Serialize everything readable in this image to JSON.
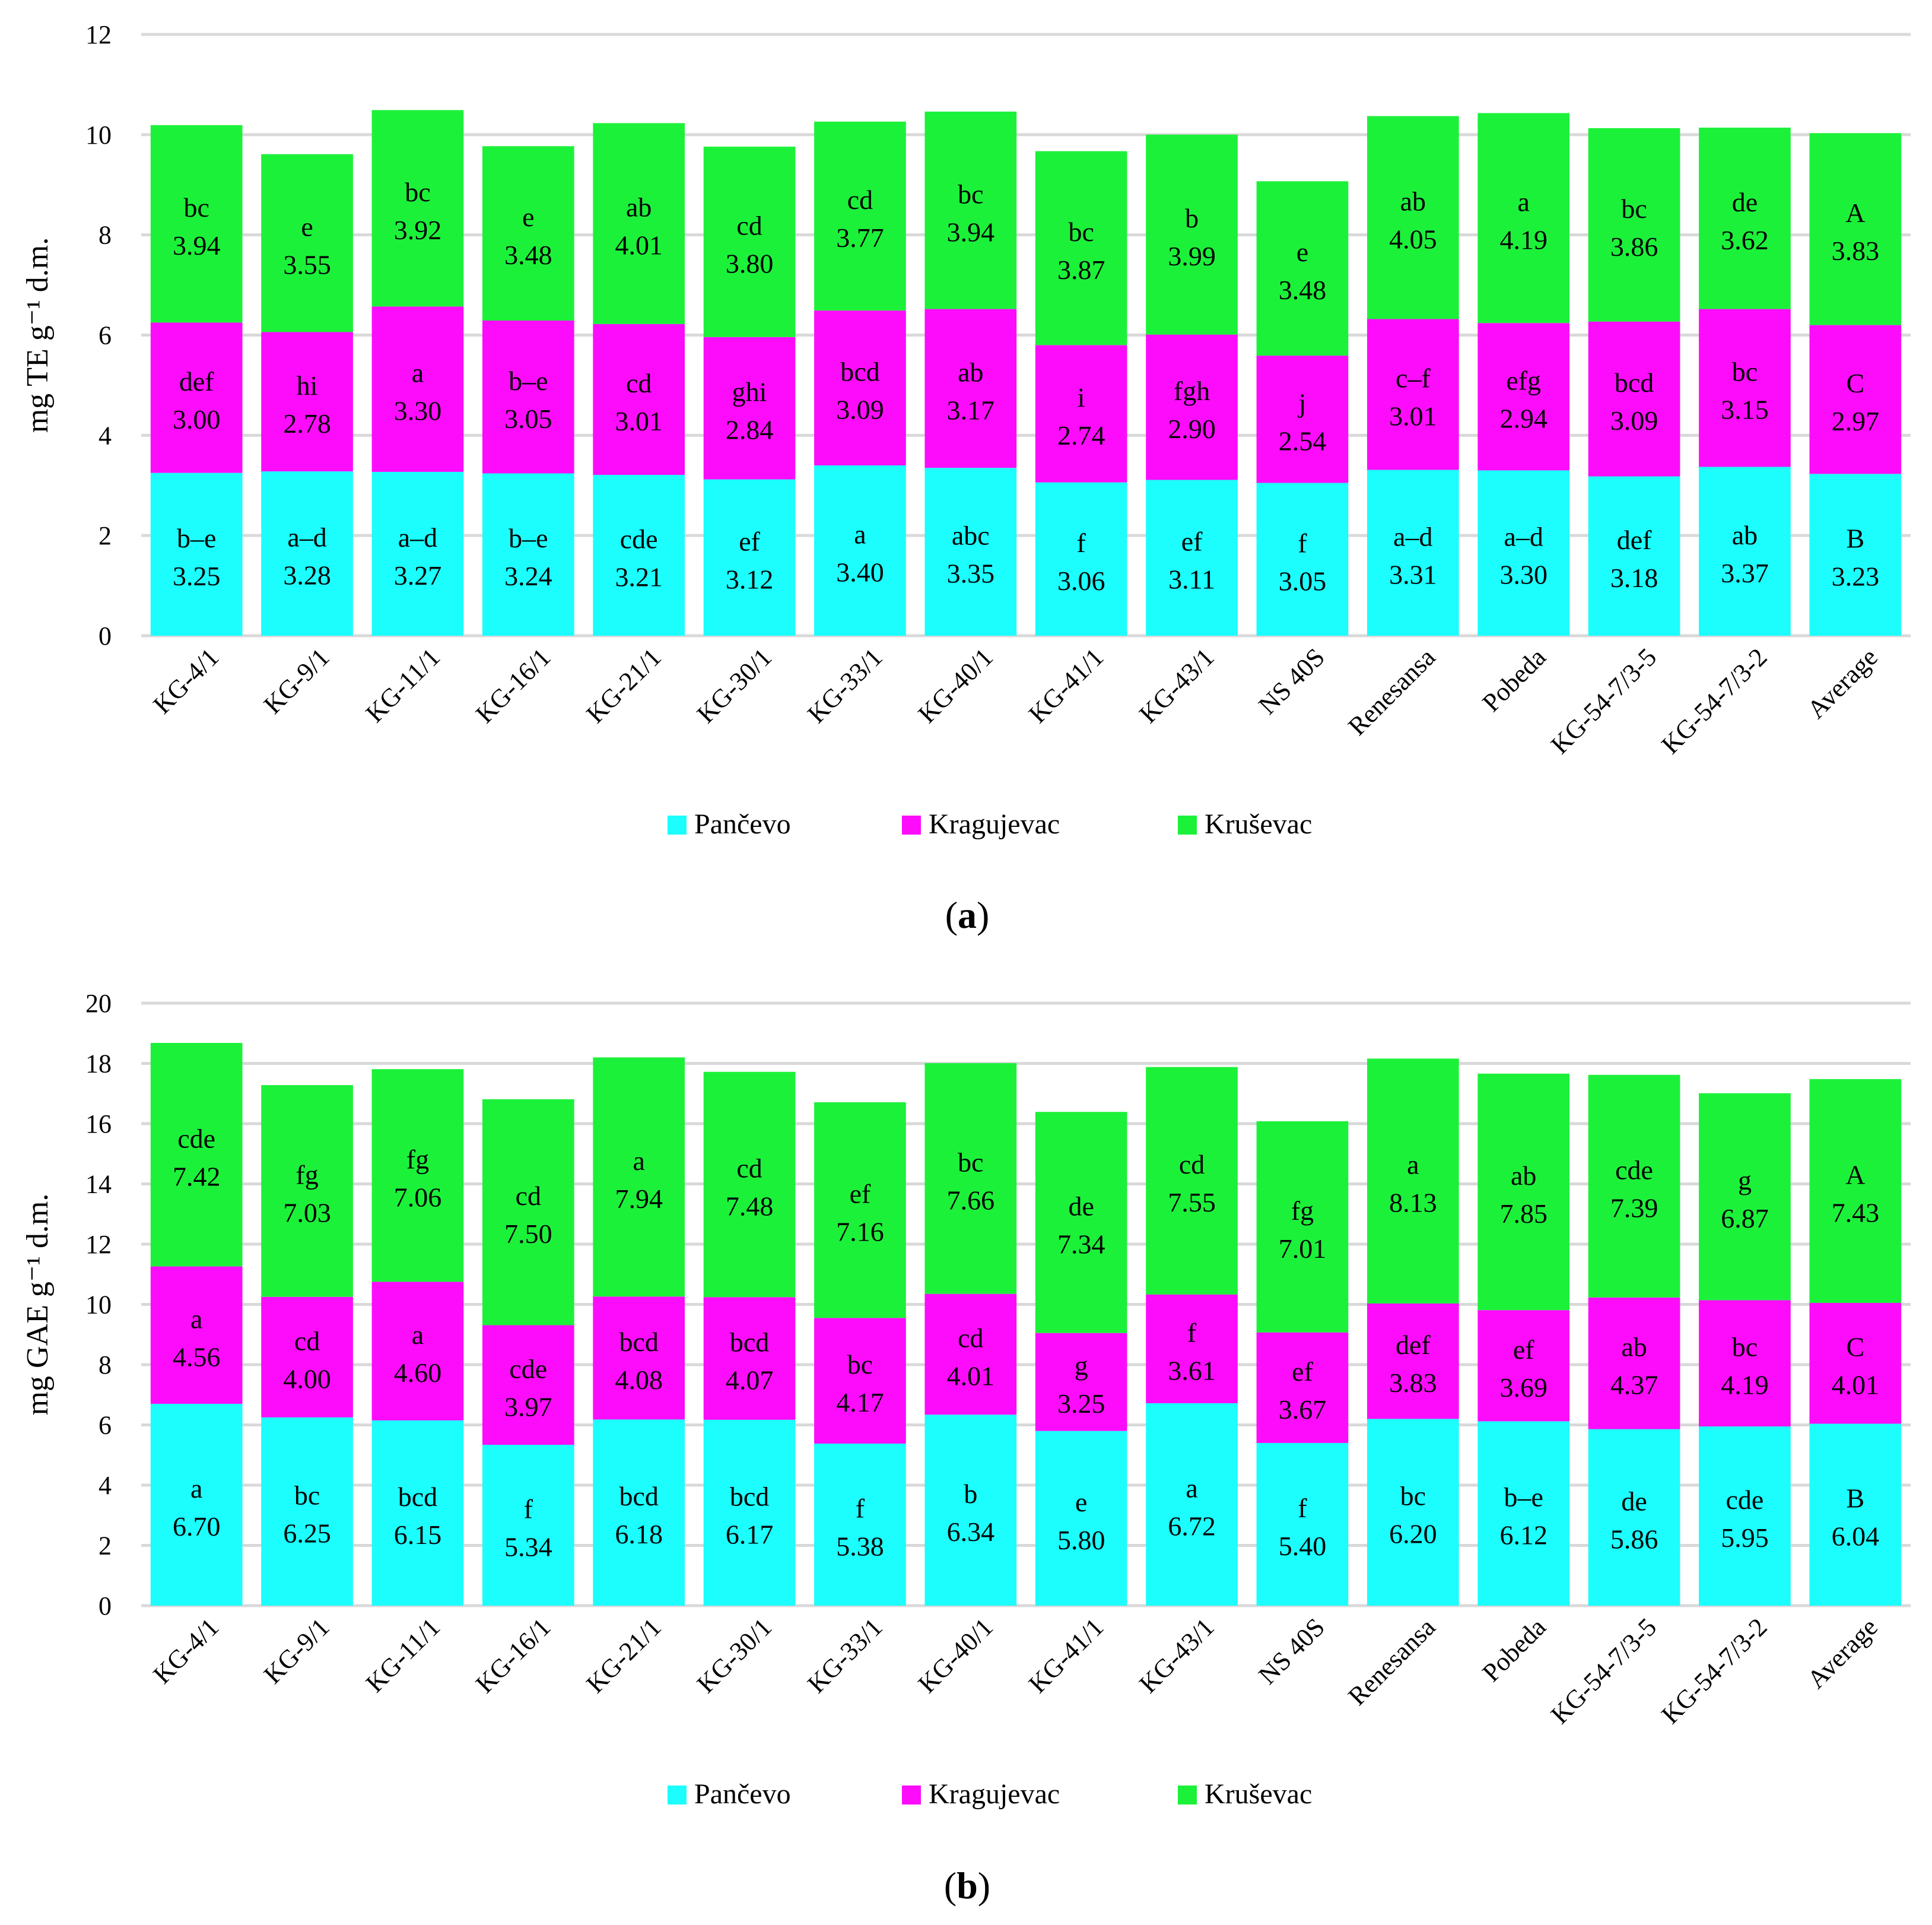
{
  "chart_data": [
    {
      "type": "bar",
      "stacked": true,
      "panel_label": "a",
      "ylabel": "mg TE g⁻¹ d.m.",
      "ylim": [
        0,
        12
      ],
      "yticks": [
        0,
        2,
        4,
        6,
        8,
        10,
        12
      ],
      "grid": true,
      "legend_position": "bottom-center",
      "categories": [
        "KG-4/1",
        "KG-9/1",
        "KG-11/1",
        "KG-16/1",
        "KG-21/1",
        "KG-30/1",
        "KG-33/1",
        "KG-40/1",
        "KG-41/1",
        "KG-43/1",
        "NS 40S",
        "Renesansa",
        "Pobeda",
        "KG-54-7/3-5",
        "KG-54-7/3-2",
        "Average"
      ],
      "series": [
        {
          "name": "Pančevo",
          "color": "#1cfdfd",
          "values": [
            3.25,
            3.28,
            3.27,
            3.24,
            3.21,
            3.12,
            3.4,
            3.35,
            3.06,
            3.11,
            3.05,
            3.31,
            3.3,
            3.18,
            3.37,
            3.23
          ],
          "labels": [
            "3.25",
            "3.28",
            "3.27",
            "3.24",
            "3.21",
            "3.12",
            "3.40",
            "3.35",
            "3.06",
            "3.11",
            "3.05",
            "3.31",
            "3.30",
            "3.18",
            "3.37",
            "3.23"
          ],
          "letters": [
            "b–e",
            "a–d",
            "a–d",
            "b–e",
            "cde",
            "ef",
            "a",
            "abc",
            "f",
            "ef",
            "f",
            "a–d",
            "a–d",
            "def",
            "ab",
            "B"
          ]
        },
        {
          "name": "Kragujevac",
          "color": "#fc0cfb",
          "values": [
            3.0,
            2.78,
            3.3,
            3.05,
            3.01,
            2.84,
            3.09,
            3.17,
            2.74,
            2.9,
            2.54,
            3.01,
            2.94,
            3.09,
            3.15,
            2.97
          ],
          "labels": [
            "3.00",
            "2.78",
            "3.30",
            "3.05",
            "3.01",
            "2.84",
            "3.09",
            "3.17",
            "2.74",
            "2.90",
            "2.54",
            "3.01",
            "2.94",
            "3.09",
            "3.15",
            "2.97"
          ],
          "letters": [
            "def",
            "hi",
            "a",
            "b–e",
            "cd",
            "ghi",
            "bcd",
            "ab",
            "i",
            "fgh",
            "j",
            "c–f",
            "efg",
            "bcd",
            "bc",
            "C"
          ]
        },
        {
          "name": "Kruševac",
          "color": "#1cf13a",
          "values": [
            3.94,
            3.55,
            3.92,
            3.48,
            4.01,
            3.8,
            3.77,
            3.94,
            3.87,
            3.99,
            3.48,
            4.05,
            4.19,
            3.86,
            3.62,
            3.83
          ],
          "labels": [
            "3.94",
            "3.55",
            "3.92",
            "3.48",
            "4.01",
            "3.80",
            "3.77",
            "3.94",
            "3.87",
            "3.99",
            "3.48",
            "4.05",
            "4.19",
            "3.86",
            "3.62",
            "3.83"
          ],
          "letters": [
            "bc",
            "e",
            "bc",
            "e",
            "ab",
            "cd",
            "cd",
            "bc",
            "bc",
            "b",
            "e",
            "ab",
            "a",
            "bc",
            "de",
            "A"
          ]
        }
      ]
    },
    {
      "type": "bar",
      "stacked": true,
      "panel_label": "b",
      "ylabel": "mg GAE g⁻¹ d.m.",
      "ylim": [
        0,
        20
      ],
      "yticks": [
        0,
        2,
        4,
        6,
        8,
        10,
        12,
        14,
        16,
        18,
        20
      ],
      "grid": true,
      "legend_position": "bottom-center",
      "categories": [
        "KG-4/1",
        "KG-9/1",
        "KG-11/1",
        "KG-16/1",
        "KG-21/1",
        "KG-30/1",
        "KG-33/1",
        "KG-40/1",
        "KG-41/1",
        "KG-43/1",
        "NS 40S",
        "Renesansa",
        "Pobeda",
        "KG-54-7/3-5",
        "KG-54-7/3-2",
        "Average"
      ],
      "series": [
        {
          "name": "Pančevo",
          "color": "#1cfdfd",
          "values": [
            6.7,
            6.25,
            6.15,
            5.34,
            6.18,
            6.17,
            5.38,
            6.34,
            5.8,
            6.72,
            5.4,
            6.2,
            6.12,
            5.86,
            5.95,
            6.04
          ],
          "labels": [
            "6.70",
            "6.25",
            "6.15",
            "5.34",
            "6.18",
            "6.17",
            "5.38",
            "6.34",
            "5.80",
            "6.72",
            "5.40",
            "6.20",
            "6.12",
            "5.86",
            "5.95",
            "6.04"
          ],
          "letters": [
            "a",
            "bc",
            "bcd",
            "f",
            "bcd",
            "bcd",
            "f",
            "b",
            "e",
            "a",
            "f",
            "bc",
            "b–e",
            "de",
            "cde",
            "B"
          ]
        },
        {
          "name": "Kragujevac",
          "color": "#fc0cfb",
          "values": [
            4.56,
            4.0,
            4.6,
            3.97,
            4.08,
            4.07,
            4.17,
            4.01,
            3.25,
            3.61,
            3.67,
            3.83,
            3.69,
            4.37,
            4.19,
            4.01
          ],
          "labels": [
            "4.56",
            "4.00",
            "4.60",
            "3.97",
            "4.08",
            "4.07",
            "4.17",
            "4.01",
            "3.25",
            "3.61",
            "3.67",
            "3.83",
            "3.69",
            "4.37",
            "4.19",
            "4.01"
          ],
          "letters": [
            "a",
            "cd",
            "a",
            "cde",
            "bcd",
            "bcd",
            "bc",
            "cd",
            "g",
            "f",
            "ef",
            "def",
            "ef",
            "ab",
            "bc",
            "C"
          ]
        },
        {
          "name": "Kruševac",
          "color": "#1cf13a",
          "values": [
            7.42,
            7.03,
            7.06,
            7.5,
            7.94,
            7.48,
            7.16,
            7.66,
            7.34,
            7.55,
            7.01,
            8.13,
            7.85,
            7.39,
            6.87,
            7.43
          ],
          "labels": [
            "7.42",
            "7.03",
            "7.06",
            "7.50",
            "7.94",
            "7.48",
            "7.16",
            "7.66",
            "7.34",
            "7.55",
            "7.01",
            "8.13",
            "7.85",
            "7.39",
            "6.87",
            "7.43"
          ],
          "letters": [
            "cde",
            "fg",
            "fg",
            "cd",
            "a",
            "cd",
            "ef",
            "bc",
            "de",
            "cd",
            "fg",
            "a",
            "ab",
            "cde",
            "g",
            "A"
          ]
        }
      ]
    }
  ]
}
